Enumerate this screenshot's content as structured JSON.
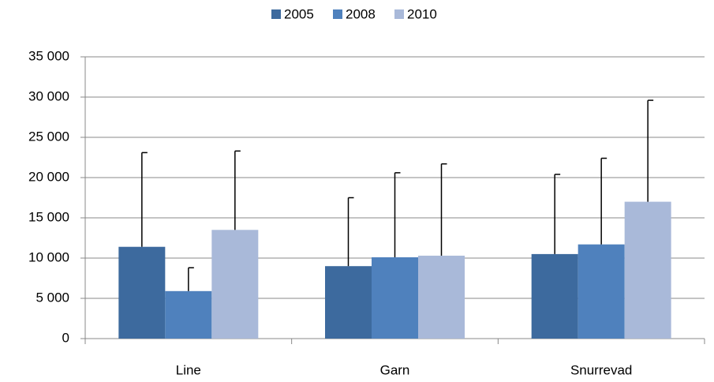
{
  "chart_data": {
    "type": "bar",
    "categories": [
      "Line",
      "Garn",
      "Snurrevad"
    ],
    "series": [
      {
        "name": "2005",
        "color": "#3d6a9e",
        "values": [
          11400,
          9000,
          10500
        ],
        "errors": [
          11700,
          8500,
          9900
        ]
      },
      {
        "name": "2008",
        "color": "#4f81bd",
        "values": [
          5900,
          10100,
          11700
        ],
        "errors": [
          2900,
          10500,
          10700
        ]
      },
      {
        "name": "2010",
        "color": "#a9b9d9",
        "values": [
          13500,
          10300,
          17000
        ],
        "errors": [
          9800,
          11400,
          12600
        ]
      }
    ],
    "ylim": [
      0,
      35000
    ],
    "yticks": [
      {
        "value": 0,
        "label": "0"
      },
      {
        "value": 5000,
        "label": "5 000"
      },
      {
        "value": 10000,
        "label": "10 000"
      },
      {
        "value": 15000,
        "label": "15 000"
      },
      {
        "value": 20000,
        "label": "20 000"
      },
      {
        "value": 25000,
        "label": "25 000"
      },
      {
        "value": 30000,
        "label": "30 000"
      },
      {
        "value": 35000,
        "label": "35 000"
      }
    ],
    "grid": true,
    "legend": "top"
  }
}
